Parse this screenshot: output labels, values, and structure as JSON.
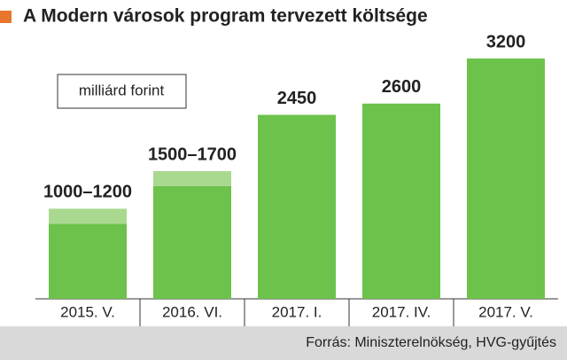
{
  "chart_data": {
    "type": "bar",
    "title": "A Modern városok program tervezett költsége",
    "unit": "milliárd forint",
    "source": "Forrás: Miniszterelnökség, HVG-gyűjtés",
    "categories": [
      "2015. V.",
      "2016. VI.",
      "2017. I.",
      "2017. IV.",
      "2017. V."
    ],
    "values": [
      1000,
      1500,
      2450,
      2600,
      3200
    ],
    "values_high": [
      1200,
      1700,
      null,
      null,
      null
    ],
    "value_labels": [
      "1000–1200",
      "1500–1700",
      "2450",
      "2600",
      "3200"
    ],
    "color": "#6cc24a",
    "range_color": "#a9d98f"
  }
}
